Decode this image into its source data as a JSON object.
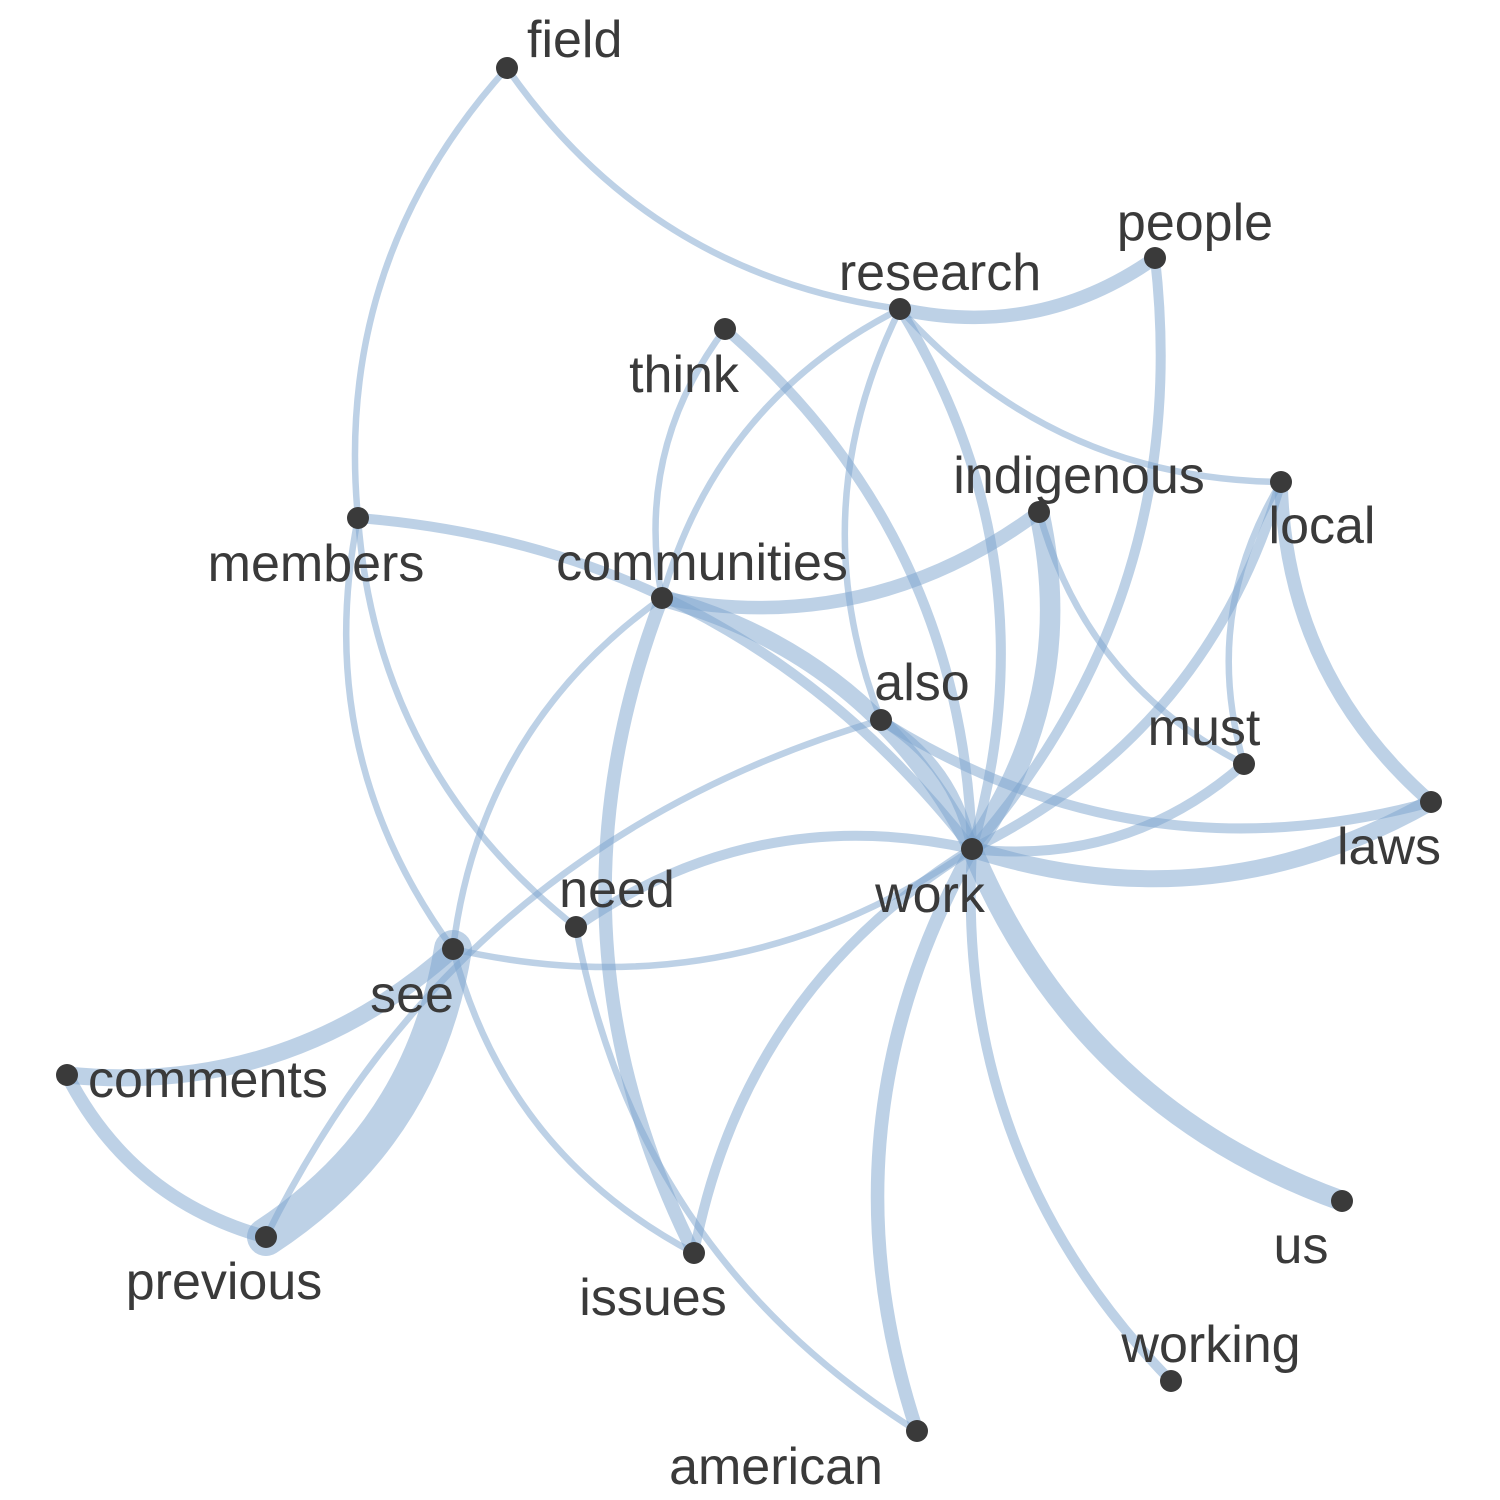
{
  "colors": {
    "edge": "#7ba4cd",
    "node": "#3a3a3a",
    "label": "#3a3a3a",
    "background": "#ffffff"
  },
  "nodes": [
    {
      "id": "field",
      "label": "field"
    },
    {
      "id": "people",
      "label": "people"
    },
    {
      "id": "research",
      "label": "research"
    },
    {
      "id": "think",
      "label": "think"
    },
    {
      "id": "indigenous",
      "label": "indigenous"
    },
    {
      "id": "local",
      "label": "local"
    },
    {
      "id": "members",
      "label": "members"
    },
    {
      "id": "communities",
      "label": "communities"
    },
    {
      "id": "also",
      "label": "also"
    },
    {
      "id": "must",
      "label": "must"
    },
    {
      "id": "laws",
      "label": "laws"
    },
    {
      "id": "work",
      "label": "work"
    },
    {
      "id": "need",
      "label": "need"
    },
    {
      "id": "see",
      "label": "see"
    },
    {
      "id": "comments",
      "label": "comments"
    },
    {
      "id": "previous",
      "label": "previous"
    },
    {
      "id": "issues",
      "label": "issues"
    },
    {
      "id": "us",
      "label": "us"
    },
    {
      "id": "working",
      "label": "working"
    },
    {
      "id": "american",
      "label": "american"
    }
  ],
  "edges": [
    {
      "source": "previous",
      "target": "see",
      "weight": 10
    },
    {
      "source": "work",
      "target": "indigenous",
      "weight": 5
    },
    {
      "source": "work",
      "target": "us",
      "weight": 5
    },
    {
      "source": "work",
      "target": "laws",
      "weight": 4
    },
    {
      "source": "work",
      "target": "communities",
      "weight": 4
    },
    {
      "source": "comments",
      "target": "see",
      "weight": 4
    },
    {
      "source": "comments",
      "target": "previous",
      "weight": 3
    },
    {
      "source": "communities",
      "target": "indigenous",
      "weight": 3
    },
    {
      "source": "communities",
      "target": "issues",
      "weight": 3
    },
    {
      "source": "work",
      "target": "american",
      "weight": 3
    },
    {
      "source": "local",
      "target": "laws",
      "weight": 3
    },
    {
      "source": "research",
      "target": "people",
      "weight": 3
    },
    {
      "source": "work",
      "target": "think",
      "weight": 2
    },
    {
      "source": "work",
      "target": "local",
      "weight": 2
    },
    {
      "source": "work",
      "target": "working",
      "weight": 2
    },
    {
      "source": "work",
      "target": "research",
      "weight": 2
    },
    {
      "source": "work",
      "target": "people",
      "weight": 2
    },
    {
      "source": "work",
      "target": "issues",
      "weight": 2
    },
    {
      "source": "work",
      "target": "also",
      "weight": 2
    },
    {
      "source": "work",
      "target": "members",
      "weight": 2
    },
    {
      "source": "work",
      "target": "must",
      "weight": 2
    },
    {
      "source": "work",
      "target": "need",
      "weight": 2
    },
    {
      "source": "also",
      "target": "laws",
      "weight": 2
    },
    {
      "source": "field",
      "target": "research",
      "weight": 1
    },
    {
      "source": "field",
      "target": "members",
      "weight": 1
    },
    {
      "source": "research",
      "target": "local",
      "weight": 1
    },
    {
      "source": "research",
      "target": "communities",
      "weight": 1
    },
    {
      "source": "research",
      "target": "also",
      "weight": 1
    },
    {
      "source": "think",
      "target": "communities",
      "weight": 1
    },
    {
      "source": "indigenous",
      "target": "must",
      "weight": 1
    },
    {
      "source": "local",
      "target": "must",
      "weight": 1
    },
    {
      "source": "members",
      "target": "see",
      "weight": 1
    },
    {
      "source": "members",
      "target": "need",
      "weight": 1
    },
    {
      "source": "communities",
      "target": "see",
      "weight": 1
    },
    {
      "source": "also",
      "target": "previous",
      "weight": 1
    },
    {
      "source": "see",
      "target": "work",
      "weight": 1
    },
    {
      "source": "see",
      "target": "issues",
      "weight": 1
    },
    {
      "source": "need",
      "target": "american",
      "weight": 1
    }
  ]
}
